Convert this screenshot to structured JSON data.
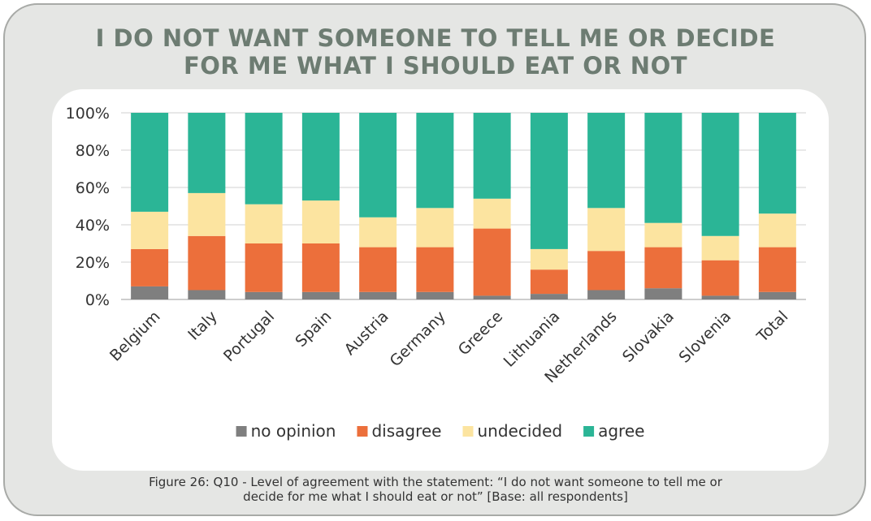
{
  "title_line1": "I DO NOT WANT SOMEONE TO TELL ME OR DECIDE",
  "title_line2": "FOR ME WHAT I SHOULD EAT OR NOT",
  "caption_line1": "Figure 26: Q10 - Level of agreement with the statement: “I do not want someone to tell me or",
  "caption_line2": "decide for me what I should eat or not” [Base: all respondents]",
  "chart_data": {
    "type": "bar",
    "stacked": true,
    "percent": true,
    "categories": [
      "Belgium",
      "Italy",
      "Portugal",
      "Spain",
      "Austria",
      "Germany",
      "Greece",
      "Lithuania",
      "Netherlands",
      "Slovakia",
      "Slovenia",
      "Total"
    ],
    "series": [
      {
        "name": "no opinion",
        "color": "#7f7f7f",
        "values": [
          7,
          5,
          4,
          4,
          4,
          4,
          2,
          3,
          5,
          6,
          2,
          4
        ]
      },
      {
        "name": "disagree",
        "color": "#ec6f3b",
        "values": [
          20,
          29,
          26,
          26,
          24,
          24,
          36,
          13,
          21,
          22,
          19,
          24
        ]
      },
      {
        "name": "undecided",
        "color": "#fce4a0",
        "values": [
          20,
          23,
          21,
          23,
          16,
          21,
          16,
          11,
          23,
          13,
          13,
          18
        ]
      },
      {
        "name": "agree",
        "color": "#2bb596",
        "values": [
          53,
          43,
          49,
          47,
          56,
          51,
          46,
          73,
          51,
          59,
          66,
          54
        ]
      }
    ],
    "y_ticks": [
      "0%",
      "20%",
      "40%",
      "60%",
      "80%",
      "100%"
    ],
    "ylim": [
      0,
      100
    ],
    "grid": true,
    "legend_position": "bottom"
  }
}
